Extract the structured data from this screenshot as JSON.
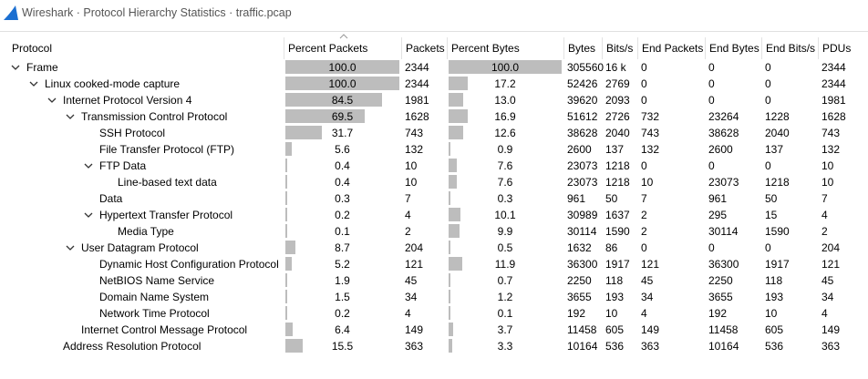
{
  "window": {
    "title": "Wireshark · Protocol Hierarchy Statistics · traffic.pcap"
  },
  "table": {
    "columns": [
      "Protocol",
      "Percent Packets",
      "Packets",
      "Percent Bytes",
      "Bytes",
      "Bits/s",
      "End Packets",
      "End Bytes",
      "End Bits/s",
      "PDUs"
    ],
    "rows": [
      {
        "depth": 0,
        "expandable": true,
        "cells": [
          "Frame",
          "100.0",
          "2344",
          "100.0",
          "305560",
          "16 k",
          "0",
          "0",
          "0",
          "2344"
        ]
      },
      {
        "depth": 1,
        "expandable": true,
        "cells": [
          "Linux cooked-mode capture",
          "100.0",
          "2344",
          "17.2",
          "52426",
          "2769",
          "0",
          "0",
          "0",
          "2344"
        ]
      },
      {
        "depth": 2,
        "expandable": true,
        "cells": [
          "Internet Protocol Version 4",
          "84.5",
          "1981",
          "13.0",
          "39620",
          "2093",
          "0",
          "0",
          "0",
          "1981"
        ]
      },
      {
        "depth": 3,
        "expandable": true,
        "cells": [
          "Transmission Control Protocol",
          "69.5",
          "1628",
          "16.9",
          "51612",
          "2726",
          "732",
          "23264",
          "1228",
          "1628"
        ]
      },
      {
        "depth": 4,
        "expandable": false,
        "cells": [
          "SSH Protocol",
          "31.7",
          "743",
          "12.6",
          "38628",
          "2040",
          "743",
          "38628",
          "2040",
          "743"
        ]
      },
      {
        "depth": 4,
        "expandable": false,
        "cells": [
          "File Transfer Protocol (FTP)",
          "5.6",
          "132",
          "0.9",
          "2600",
          "137",
          "132",
          "2600",
          "137",
          "132"
        ]
      },
      {
        "depth": 4,
        "expandable": true,
        "cells": [
          "FTP Data",
          "0.4",
          "10",
          "7.6",
          "23073",
          "1218",
          "0",
          "0",
          "0",
          "10"
        ]
      },
      {
        "depth": 5,
        "expandable": false,
        "cells": [
          "Line-based text data",
          "0.4",
          "10",
          "7.6",
          "23073",
          "1218",
          "10",
          "23073",
          "1218",
          "10"
        ]
      },
      {
        "depth": 4,
        "expandable": false,
        "cells": [
          "Data",
          "0.3",
          "7",
          "0.3",
          "961",
          "50",
          "7",
          "961",
          "50",
          "7"
        ]
      },
      {
        "depth": 4,
        "expandable": true,
        "cells": [
          "Hypertext Transfer Protocol",
          "0.2",
          "4",
          "10.1",
          "30989",
          "1637",
          "2",
          "295",
          "15",
          "4"
        ]
      },
      {
        "depth": 5,
        "expandable": false,
        "cells": [
          "Media Type",
          "0.1",
          "2",
          "9.9",
          "30114",
          "1590",
          "2",
          "30114",
          "1590",
          "2"
        ]
      },
      {
        "depth": 3,
        "expandable": true,
        "cells": [
          "User Datagram Protocol",
          "8.7",
          "204",
          "0.5",
          "1632",
          "86",
          "0",
          "0",
          "0",
          "204"
        ]
      },
      {
        "depth": 4,
        "expandable": false,
        "cells": [
          "Dynamic Host Configuration Protocol",
          "5.2",
          "121",
          "11.9",
          "36300",
          "1917",
          "121",
          "36300",
          "1917",
          "121"
        ]
      },
      {
        "depth": 4,
        "expandable": false,
        "cells": [
          "NetBIOS Name Service",
          "1.9",
          "45",
          "0.7",
          "2250",
          "118",
          "45",
          "2250",
          "118",
          "45"
        ]
      },
      {
        "depth": 4,
        "expandable": false,
        "cells": [
          "Domain Name System",
          "1.5",
          "34",
          "1.2",
          "3655",
          "193",
          "34",
          "3655",
          "193",
          "34"
        ]
      },
      {
        "depth": 4,
        "expandable": false,
        "cells": [
          "Network Time Protocol",
          "0.2",
          "4",
          "0.1",
          "192",
          "10",
          "4",
          "192",
          "10",
          "4"
        ]
      },
      {
        "depth": 3,
        "expandable": false,
        "cells": [
          "Internet Control Message Protocol",
          "6.4",
          "149",
          "3.7",
          "11458",
          "605",
          "149",
          "11458",
          "605",
          "149"
        ]
      },
      {
        "depth": 2,
        "expandable": false,
        "cells": [
          "Address Resolution Protocol",
          "15.5",
          "363",
          "3.3",
          "10164",
          "536",
          "363",
          "10164",
          "536",
          "363"
        ]
      }
    ]
  }
}
